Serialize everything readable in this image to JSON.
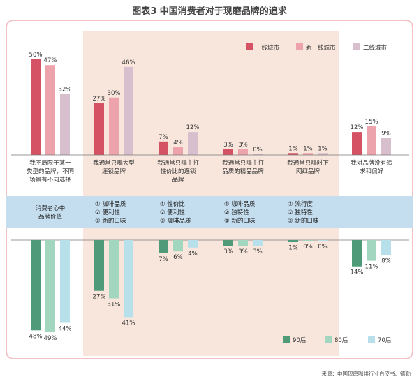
{
  "chart_data": {
    "type": "bar",
    "title": "图表3  中国消费者对于现磨品牌的追求",
    "source": "来源：中国现磨咖啡行业白皮书、德勤",
    "categories": [
      [
        "我不局限于某一",
        "类型的品牌，不同",
        "场景有不同选择"
      ],
      [
        "我通常只喝大型",
        "连锁品牌"
      ],
      [
        "我通常只喝主打",
        "性价比的连锁",
        "品牌"
      ],
      [
        "我通常只喝主打",
        "品质的精品品牌"
      ],
      [
        "我通常只喝时下",
        "网红品牌"
      ],
      [
        "我对品牌没有追",
        "求和偏好"
      ]
    ],
    "top": {
      "series": [
        {
          "name": "一线城市",
          "color": "#d45263",
          "values": [
            50,
            27,
            7,
            3,
            1,
            12
          ]
        },
        {
          "name": "新一线城市",
          "color": "#eda3ac",
          "values": [
            47,
            30,
            4,
            3,
            1,
            15
          ]
        },
        {
          "name": "二线城市",
          "color": "#d7bfcd",
          "values": [
            32,
            46,
            12,
            0,
            1,
            9
          ]
        }
      ],
      "unit": "%"
    },
    "bottom": {
      "series": [
        {
          "name": "90后",
          "color": "#4f9a79",
          "values": [
            48,
            27,
            7,
            3,
            1,
            14
          ]
        },
        {
          "name": "80后",
          "color": "#a3d6bf",
          "values": [
            49,
            31,
            6,
            3,
            0,
            11
          ]
        },
        {
          "name": "70后",
          "color": "#b8e0ea",
          "values": [
            44,
            41,
            4,
            3,
            0,
            8
          ]
        }
      ],
      "unit": "%"
    },
    "band": {
      "label": [
        "消费者心中",
        "品牌价值"
      ],
      "factors": [
        [],
        [
          "① 咖啡品质",
          "② 便利性",
          "③ 新的口味"
        ],
        [
          "① 性价比",
          "② 便利性",
          "③ 咖啡品质"
        ],
        [
          "① 咖啡品质",
          "② 独特性",
          "③ 新的口味"
        ],
        [
          "① 流行度",
          "② 独特性",
          "③ 新的口味"
        ],
        []
      ]
    },
    "highlighted_categories": [
      1,
      2,
      3,
      4
    ]
  },
  "colors": {
    "frame": "#f1c3c6",
    "panel": "#f8e6dc",
    "band": "#c4ddef",
    "axis": "#777777"
  }
}
